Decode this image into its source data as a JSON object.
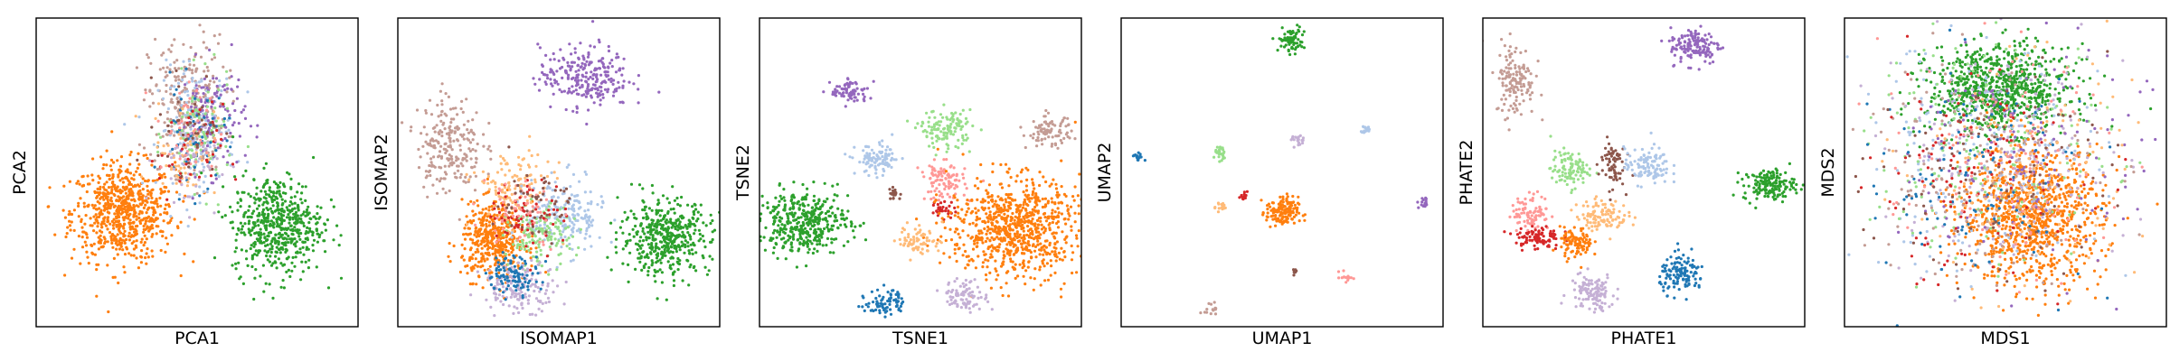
{
  "palette": {
    "blue": "#1f77b4",
    "light_blue": "#aec7e8",
    "orange": "#ff7f0e",
    "light_orange": "#ffbb78",
    "green": "#2ca02c",
    "light_green": "#98df8a",
    "red": "#d62728",
    "light_red": "#ff9896",
    "purple": "#9467bd",
    "light_purple": "#c5b0d5",
    "brown": "#8c564b",
    "light_brown": "#c49c94"
  },
  "chart_data": [
    {
      "type": "scatter",
      "xlabel": "PCA1",
      "ylabel": "PCA2",
      "xlim": [
        0,
        100
      ],
      "ylim": [
        0,
        100
      ],
      "xticks": [],
      "yticks": [],
      "clusters": [
        {
          "color": "orange",
          "x": 27,
          "y": 37,
          "sx": 8,
          "sy": 8,
          "n": 700
        },
        {
          "color": "light_brown",
          "x": 47,
          "y": 72,
          "sx": 6,
          "sy": 11,
          "n": 260
        },
        {
          "color": "light_blue",
          "x": 50,
          "y": 64,
          "sx": 6,
          "sy": 10,
          "n": 160
        },
        {
          "color": "purple",
          "x": 55,
          "y": 68,
          "sx": 5,
          "sy": 9,
          "n": 120
        },
        {
          "color": "light_green",
          "x": 51,
          "y": 62,
          "sx": 5,
          "sy": 9,
          "n": 100
        },
        {
          "color": "blue",
          "x": 49,
          "y": 60,
          "sx": 5,
          "sy": 9,
          "n": 60
        },
        {
          "color": "light_orange",
          "x": 46,
          "y": 58,
          "sx": 5,
          "sy": 8,
          "n": 60
        },
        {
          "color": "light_purple",
          "x": 47,
          "y": 54,
          "sx": 5,
          "sy": 8,
          "n": 60
        },
        {
          "color": "red",
          "x": 48,
          "y": 56,
          "sx": 5,
          "sy": 8,
          "n": 40
        },
        {
          "color": "light_red",
          "x": 47,
          "y": 63,
          "sx": 5,
          "sy": 8,
          "n": 40
        },
        {
          "color": "brown",
          "x": 48,
          "y": 66,
          "sx": 5,
          "sy": 8,
          "n": 40
        },
        {
          "color": "green",
          "x": 75,
          "y": 33,
          "sx": 7,
          "sy": 8,
          "n": 550
        }
      ]
    },
    {
      "type": "scatter",
      "xlabel": "ISOMAP1",
      "ylabel": "ISOMAP2",
      "xlim": [
        0,
        100
      ],
      "ylim": [
        0,
        100
      ],
      "xticks": [],
      "yticks": [],
      "clusters": [
        {
          "color": "purple",
          "x": 58,
          "y": 81,
          "sx": 7,
          "sy": 5,
          "n": 260
        },
        {
          "color": "light_brown",
          "x": 16,
          "y": 59,
          "sx": 5,
          "sy": 8,
          "n": 220
        },
        {
          "color": "orange",
          "x": 30,
          "y": 28,
          "sx": 5,
          "sy": 6,
          "n": 450
        },
        {
          "color": "light_orange",
          "x": 36,
          "y": 45,
          "sx": 6,
          "sy": 6,
          "n": 130
        },
        {
          "color": "light_blue",
          "x": 52,
          "y": 36,
          "sx": 6,
          "sy": 6,
          "n": 200
        },
        {
          "color": "light_green",
          "x": 44,
          "y": 29,
          "sx": 5,
          "sy": 5,
          "n": 150
        },
        {
          "color": "light_purple",
          "x": 38,
          "y": 13,
          "sx": 6,
          "sy": 4,
          "n": 150
        },
        {
          "color": "blue",
          "x": 36,
          "y": 17,
          "sx": 4,
          "sy": 3,
          "n": 100
        },
        {
          "color": "red",
          "x": 40,
          "y": 36,
          "sx": 6,
          "sy": 6,
          "n": 70
        },
        {
          "color": "light_red",
          "x": 38,
          "y": 38,
          "sx": 6,
          "sy": 6,
          "n": 60
        },
        {
          "color": "brown",
          "x": 42,
          "y": 40,
          "sx": 6,
          "sy": 6,
          "n": 50
        },
        {
          "color": "green",
          "x": 83,
          "y": 29,
          "sx": 7,
          "sy": 6,
          "n": 450
        }
      ]
    },
    {
      "type": "scatter",
      "xlabel": "TSNE1",
      "ylabel": "TSNE2",
      "xlim": [
        0,
        100
      ],
      "ylim": [
        0,
        100
      ],
      "xticks": [],
      "yticks": [],
      "clusters": [
        {
          "color": "purple",
          "x": 28,
          "y": 76,
          "sx": 3,
          "sy": 2,
          "n": 80
        },
        {
          "color": "light_green",
          "x": 58,
          "y": 64,
          "sx": 4,
          "sy": 3,
          "n": 130
        },
        {
          "color": "light_brown",
          "x": 90,
          "y": 63,
          "sx": 3.5,
          "sy": 2.5,
          "n": 90
        },
        {
          "color": "light_blue",
          "x": 37,
          "y": 54,
          "sx": 3.5,
          "sy": 2.5,
          "n": 100
        },
        {
          "color": "light_red",
          "x": 57,
          "y": 47,
          "sx": 3.5,
          "sy": 3,
          "n": 100
        },
        {
          "color": "brown",
          "x": 42,
          "y": 43,
          "sx": 1.2,
          "sy": 1,
          "n": 20
        },
        {
          "color": "red",
          "x": 57,
          "y": 38,
          "sx": 1.8,
          "sy": 1.5,
          "n": 30
        },
        {
          "color": "green",
          "x": 14,
          "y": 34,
          "sx": 7,
          "sy": 5,
          "n": 420
        },
        {
          "color": "orange",
          "x": 79,
          "y": 32,
          "sx": 10,
          "sy": 8,
          "n": 800
        },
        {
          "color": "light_orange",
          "x": 50,
          "y": 28,
          "sx": 3.5,
          "sy": 2.5,
          "n": 70
        },
        {
          "color": "blue",
          "x": 39,
          "y": 8,
          "sx": 3,
          "sy": 2.2,
          "n": 80
        },
        {
          "color": "light_purple",
          "x": 64,
          "y": 10,
          "sx": 3.5,
          "sy": 2.5,
          "n": 90
        }
      ]
    },
    {
      "type": "scatter",
      "xlabel": "UMAP1",
      "ylabel": "UMAP2",
      "xlim": [
        0,
        100
      ],
      "ylim": [
        0,
        100
      ],
      "xticks": [],
      "yticks": [],
      "clusters": [
        {
          "color": "green",
          "x": 53,
          "y": 93,
          "sx": 2,
          "sy": 2,
          "n": 80
        },
        {
          "color": "light_blue",
          "x": 76,
          "y": 64,
          "sx": 0.8,
          "sy": 0.8,
          "n": 15
        },
        {
          "color": "light_purple",
          "x": 55,
          "y": 60,
          "sx": 1,
          "sy": 1,
          "n": 20
        },
        {
          "color": "light_green",
          "x": 31,
          "y": 56,
          "sx": 1,
          "sy": 1.2,
          "n": 25
        },
        {
          "color": "blue",
          "x": 5,
          "y": 55,
          "sx": 0.8,
          "sy": 0.8,
          "n": 15
        },
        {
          "color": "red",
          "x": 38,
          "y": 42,
          "sx": 0.8,
          "sy": 0.8,
          "n": 12
        },
        {
          "color": "light_orange",
          "x": 31,
          "y": 39,
          "sx": 0.9,
          "sy": 0.9,
          "n": 15
        },
        {
          "color": "orange",
          "x": 50,
          "y": 37,
          "sx": 2.5,
          "sy": 2.5,
          "n": 150
        },
        {
          "color": "purple",
          "x": 94,
          "y": 40,
          "sx": 1,
          "sy": 1,
          "n": 15
        },
        {
          "color": "brown",
          "x": 54,
          "y": 18,
          "sx": 0.6,
          "sy": 0.6,
          "n": 8
        },
        {
          "color": "light_red",
          "x": 70,
          "y": 16,
          "sx": 1,
          "sy": 1,
          "n": 15
        },
        {
          "color": "light_brown",
          "x": 28,
          "y": 6,
          "sx": 1,
          "sy": 1,
          "n": 15
        }
      ]
    },
    {
      "type": "scatter",
      "xlabel": "PHATE1",
      "ylabel": "PHATE2",
      "xlim": [
        0,
        100
      ],
      "ylim": [
        0,
        100
      ],
      "xticks": [],
      "yticks": [],
      "clusters": [
        {
          "color": "purple",
          "x": 66,
          "y": 91,
          "sx": 4,
          "sy": 3,
          "n": 140
        },
        {
          "color": "light_brown",
          "x": 10,
          "y": 80,
          "sx": 3,
          "sy": 6,
          "n": 140
        },
        {
          "color": "green",
          "x": 89,
          "y": 46,
          "sx": 4,
          "sy": 2.5,
          "n": 160
        },
        {
          "color": "light_green",
          "x": 27,
          "y": 51,
          "sx": 3,
          "sy": 3,
          "n": 100
        },
        {
          "color": "brown",
          "x": 40,
          "y": 53,
          "sx": 2,
          "sy": 4,
          "n": 70
        },
        {
          "color": "light_blue",
          "x": 51,
          "y": 52,
          "sx": 3.5,
          "sy": 3,
          "n": 110
        },
        {
          "color": "light_red",
          "x": 15,
          "y": 37,
          "sx": 3,
          "sy": 3,
          "n": 90
        },
        {
          "color": "light_orange",
          "x": 37,
          "y": 36,
          "sx": 4,
          "sy": 2.5,
          "n": 110
        },
        {
          "color": "red",
          "x": 17,
          "y": 29,
          "sx": 3.5,
          "sy": 2,
          "n": 90
        },
        {
          "color": "orange",
          "x": 29,
          "y": 27,
          "sx": 2.5,
          "sy": 2.5,
          "n": 100
        },
        {
          "color": "blue",
          "x": 62,
          "y": 17,
          "sx": 3.5,
          "sy": 3,
          "n": 130
        },
        {
          "color": "light_purple",
          "x": 34,
          "y": 11,
          "sx": 3.5,
          "sy": 3,
          "n": 120
        }
      ]
    },
    {
      "type": "scatter",
      "xlabel": "MDS1",
      "ylabel": "MDS2",
      "xlim": [
        0,
        100
      ],
      "ylim": [
        0,
        100
      ],
      "xticks": [],
      "yticks": [],
      "clusters": [
        {
          "color": "green",
          "x": 48,
          "y": 77,
          "sx": 11,
          "sy": 7,
          "n": 800
        },
        {
          "color": "orange",
          "x": 58,
          "y": 36,
          "sx": 11,
          "sy": 11,
          "n": 1000
        },
        {
          "color": "light_blue",
          "x": 42,
          "y": 56,
          "sx": 19,
          "sy": 19,
          "n": 200
        },
        {
          "color": "light_green",
          "x": 45,
          "y": 58,
          "sx": 19,
          "sy": 19,
          "n": 180
        },
        {
          "color": "light_purple",
          "x": 50,
          "y": 54,
          "sx": 19,
          "sy": 19,
          "n": 180
        },
        {
          "color": "light_brown",
          "x": 40,
          "y": 52,
          "sx": 19,
          "sy": 19,
          "n": 180
        },
        {
          "color": "purple",
          "x": 58,
          "y": 56,
          "sx": 18,
          "sy": 18,
          "n": 150
        },
        {
          "color": "light_orange",
          "x": 55,
          "y": 50,
          "sx": 18,
          "sy": 18,
          "n": 150
        },
        {
          "color": "blue",
          "x": 40,
          "y": 50,
          "sx": 18,
          "sy": 18,
          "n": 120
        },
        {
          "color": "red",
          "x": 38,
          "y": 48,
          "sx": 18,
          "sy": 18,
          "n": 110
        },
        {
          "color": "light_red",
          "x": 48,
          "y": 52,
          "sx": 18,
          "sy": 18,
          "n": 110
        },
        {
          "color": "brown",
          "x": 45,
          "y": 50,
          "sx": 18,
          "sy": 18,
          "n": 90
        }
      ]
    }
  ]
}
